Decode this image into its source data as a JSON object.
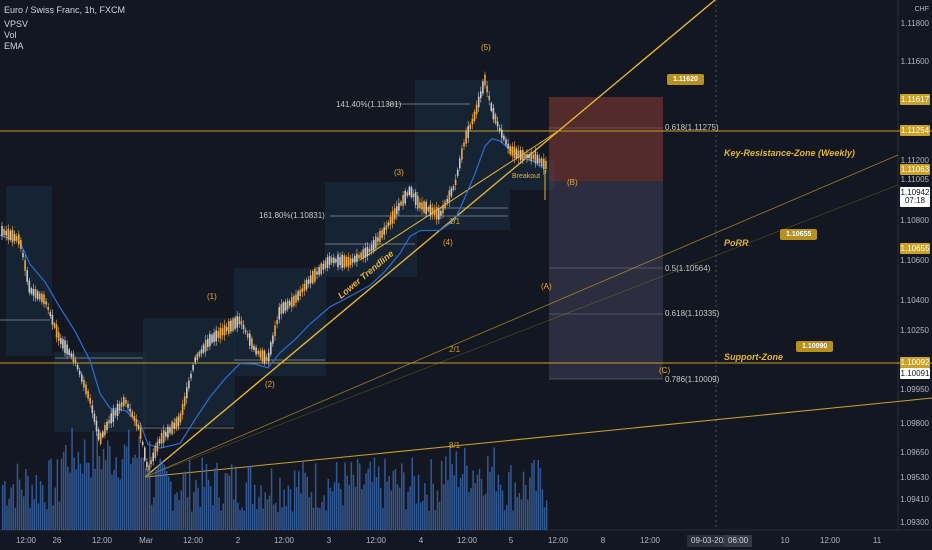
{
  "header": {
    "symbol": "Euro / Swiss Franc, 1h, FXCM",
    "indicators": [
      "VPSV",
      "Vol",
      "EMA"
    ]
  },
  "price_axis": {
    "currency": "CHF",
    "ticks": [
      "1.11800",
      "1.11600",
      "1.11200",
      "1.11005",
      "1.10800",
      "1.10600",
      "1.10400",
      "1.10250",
      "1.09950",
      "1.09800",
      "1.09650",
      "1.09530",
      "1.09410",
      "1.09300"
    ],
    "tags": [
      {
        "label": "1.11617",
        "bg": "#c9a227",
        "fg": "#ffffff"
      },
      {
        "label": "1.11254",
        "bg": "#c9a227",
        "fg": "#ffffff"
      },
      {
        "label": "1.11063",
        "bg": "#c9a227",
        "fg": "#ffffff"
      },
      {
        "label": "1.10942",
        "sub": "07:18",
        "bg": "#ffffff",
        "fg": "#131722"
      },
      {
        "label": "1.10655",
        "bg": "#c9a227",
        "fg": "#ffffff"
      },
      {
        "label": "1.10092",
        "bg": "#c9a227",
        "fg": "#ffffff"
      },
      {
        "label": "1.10091",
        "bg": "#ffffff",
        "fg": "#131722"
      }
    ]
  },
  "time_axis": {
    "ticks": [
      "12:00",
      "26",
      "12:00",
      "Mar",
      "12:00",
      "2",
      "12:00",
      "3",
      "12:00",
      "4",
      "12:00",
      "5",
      "12:00",
      "8",
      "12:00",
      "10",
      "12:00",
      "11"
    ],
    "cursor_date": "09-03-2021",
    "cursor_time": "06:00"
  },
  "annotations": {
    "fib_labels": [
      "141.40%(1.11381)",
      "161.80%(1.10831)",
      "0.618(1.11275)",
      "0.5(1.10564)",
      "0.618(1.10335)",
      "0.786(1.10009)"
    ],
    "waves": [
      "(1)",
      "(2)",
      "(3)",
      "(4)",
      "(5)",
      "(A)",
      "(B)",
      "(C)"
    ],
    "trendline_label": "Lower Trendline",
    "breakout_label": "Breakout",
    "fan_labels": [
      "1/1",
      "2/1",
      "8/1"
    ],
    "zones": {
      "resistance": "Key-Resistance-Zone (Weekly)",
      "porr": "PoRR",
      "support": "Support-Zone"
    },
    "callouts": [
      "1.11620",
      "1.10655",
      "1.10090"
    ]
  },
  "colors": {
    "background": "#131722",
    "up_candle": "#f0a73a",
    "down_candle": "#c9c9c9",
    "gold_line": "#c9a227",
    "ema": "#2a6fd6",
    "volume": "#3d6fb8"
  }
}
